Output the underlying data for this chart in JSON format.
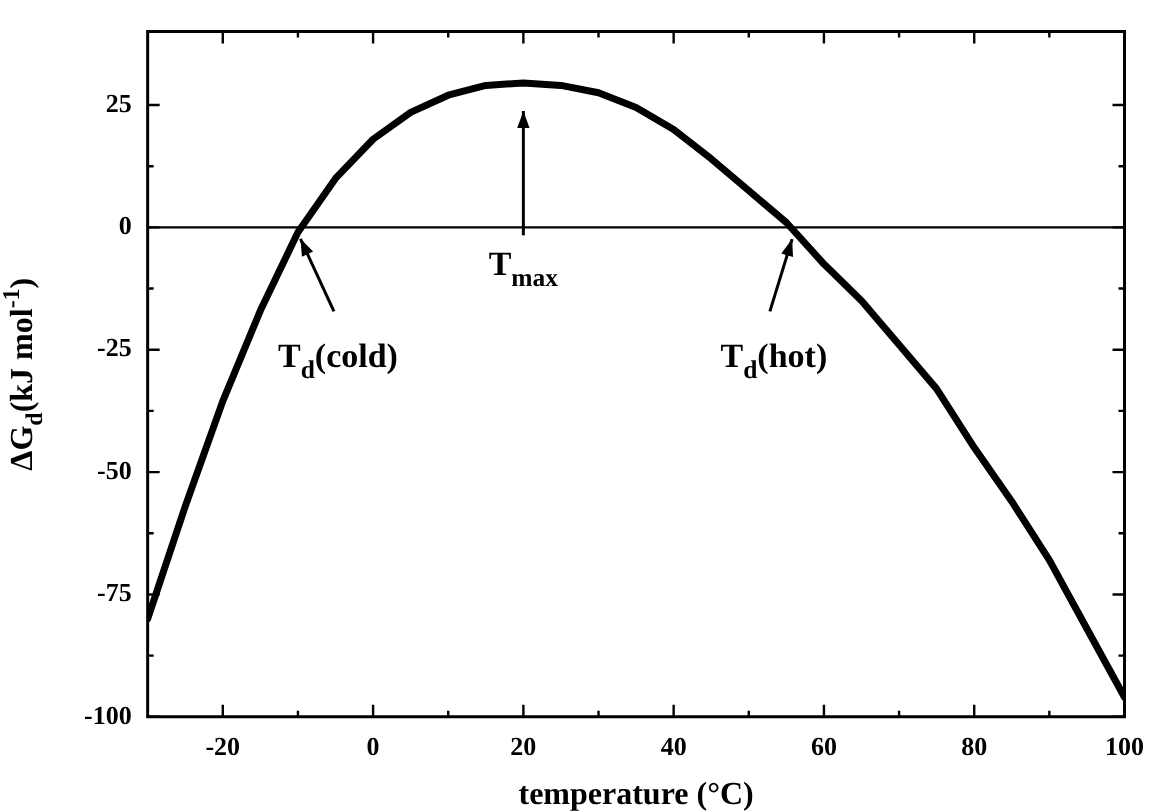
{
  "chart_data": {
    "type": "line",
    "xlabel": "temperature (°C)",
    "ylabel": "ΔG$_{d}$(kJ mol$^{-1}$)",
    "x": [
      -30,
      -25,
      -20,
      -15,
      -10,
      -5,
      0,
      5,
      10,
      15,
      20,
      25,
      30,
      35,
      40,
      45,
      50,
      55,
      60,
      65,
      70,
      75,
      80,
      85,
      90,
      95,
      100
    ],
    "series": [
      {
        "color": "#000000",
        "values": [
          -80,
          -57,
          -35.5,
          -17,
          -1,
          10,
          18,
          23.5,
          27,
          29,
          29.5,
          29,
          27.5,
          24.5,
          20,
          14,
          7.5,
          1,
          -7.5,
          -15,
          -24,
          -33,
          -45,
          -56,
          -68,
          -82,
          -96
        ]
      }
    ],
    "xlim": [
      -30,
      100
    ],
    "ylim": [
      -100,
      40
    ],
    "xticks": [
      -20,
      {
        "value": -10,
        "label": null
      },
      0,
      {
        "value": 10,
        "label": null
      },
      20,
      {
        "value": 30,
        "label": null
      },
      40,
      {
        "value": 50,
        "label": null
      },
      60,
      {
        "value": 70,
        "label": null
      },
      80,
      {
        "value": 90,
        "label": null
      },
      100
    ],
    "yticks": [
      -100,
      {
        "value": -87.5,
        "label": null
      },
      -75,
      {
        "value": -62.5,
        "label": null
      },
      -50,
      {
        "value": -37.5,
        "label": null
      },
      -25,
      {
        "value": -12.5,
        "label": null
      },
      0,
      {
        "value": 12.5,
        "label": null
      },
      25
    ],
    "ref_lines": [
      {
        "axis": "y",
        "value": 0,
        "color": "#000000"
      }
    ],
    "annotations": [
      {
        "text": "T$_{d}$(cold)",
        "x": -10,
        "y": 0
      },
      {
        "text": "T$_{max}$",
        "x": 20,
        "y": 0
      },
      {
        "text": "T$_{d}$(hot)",
        "x": 56,
        "y": 0
      }
    ],
    "grid": false,
    "legend": false,
    "marker": "none",
    "line_style": "solid"
  }
}
